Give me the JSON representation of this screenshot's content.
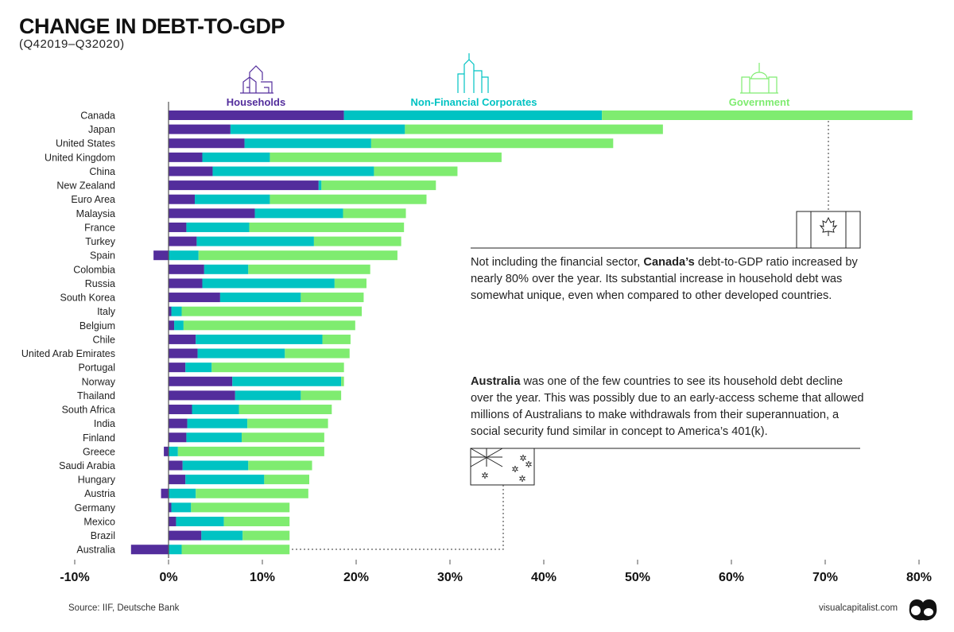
{
  "title": "CHANGE IN DEBT-TO-GDP",
  "subtitle": "(Q42019–Q32020)",
  "source": "Source: IIF, Deutsche Bank",
  "site": "visualcapitalist.com",
  "notes": {
    "canada_bold": "Canada’s",
    "canada_pre": "Not including the financial sector, ",
    "canada_post": " debt-to-GDP ratio increased by nearly 80% over the year. Its substantial increase in household debt was somewhat unique, even when compared to other developed countries.",
    "australia_bold": "Australia",
    "australia_post": " was one of the few countries to see its household debt decline over the year. This was possibly due to an early-access scheme that allowed millions of Australians to make withdrawals from their superannuation, a social security fund similar in concept to America’s 401(k)."
  },
  "chart_data": {
    "type": "bar",
    "orientation": "horizontal",
    "stacked": true,
    "title": "CHANGE IN DEBT-TO-GDP",
    "subtitle": "(Q42019–Q32020)",
    "xlim": [
      -10,
      80
    ],
    "xticks": [
      -10,
      0,
      10,
      20,
      30,
      40,
      50,
      60,
      70,
      80
    ],
    "xtick_labels": [
      "-10%",
      "0%",
      "10%",
      "20%",
      "30%",
      "40%",
      "50%",
      "60%",
      "70%",
      "80%"
    ],
    "grid": false,
    "legend_placement": "top",
    "categories": [
      "Canada",
      "Japan",
      "United States",
      "United Kingdom",
      "China",
      "New Zealand",
      "Euro Area",
      "Malaysia",
      "France",
      "Turkey",
      "Spain",
      "Colombia",
      "Russia",
      "South Korea",
      "Italy",
      "Belgium",
      "Chile",
      "United Arab Emirates",
      "Portugal",
      "Norway",
      "Thailand",
      "South Africa",
      "India",
      "Finland",
      "Greece",
      "Saudi Arabia",
      "Hungary",
      "Austria",
      "Germany",
      "Mexico",
      "Brazil",
      "Australia"
    ],
    "series": [
      {
        "name": "Households",
        "color": "#532d9c",
        "icon": "house-icon",
        "values": [
          18.7,
          6.6,
          8.1,
          3.6,
          4.7,
          16.0,
          2.8,
          9.2,
          1.9,
          3.0,
          -1.6,
          3.8,
          3.6,
          5.5,
          0.3,
          0.6,
          2.9,
          3.1,
          1.8,
          6.8,
          7.1,
          2.5,
          2.0,
          1.9,
          -0.5,
          1.5,
          1.8,
          -0.8,
          0.3,
          0.8,
          3.5,
          -4.0
        ]
      },
      {
        "name": "Non-Financial Corporates",
        "color": "#00c3c3",
        "icon": "office-building-icon",
        "values": [
          27.5,
          18.6,
          13.5,
          7.2,
          17.2,
          0.3,
          8.0,
          9.4,
          6.7,
          12.5,
          3.2,
          4.7,
          14.1,
          8.6,
          1.1,
          1.0,
          13.5,
          9.3,
          2.8,
          11.6,
          7.0,
          5.0,
          6.4,
          5.9,
          1.0,
          7.0,
          8.4,
          2.9,
          2.1,
          5.1,
          4.4,
          1.4
        ]
      },
      {
        "name": "Government",
        "color": "#7fec70",
        "icon": "capitol-icon",
        "values": [
          33.1,
          27.5,
          25.8,
          24.7,
          8.9,
          12.2,
          16.7,
          6.7,
          16.5,
          9.3,
          21.2,
          13.0,
          3.4,
          6.7,
          19.2,
          18.3,
          3.0,
          6.9,
          14.1,
          0.3,
          4.3,
          9.9,
          8.6,
          8.8,
          15.6,
          6.8,
          4.8,
          12.0,
          10.5,
          7.0,
          5.0,
          11.5
        ]
      }
    ]
  }
}
